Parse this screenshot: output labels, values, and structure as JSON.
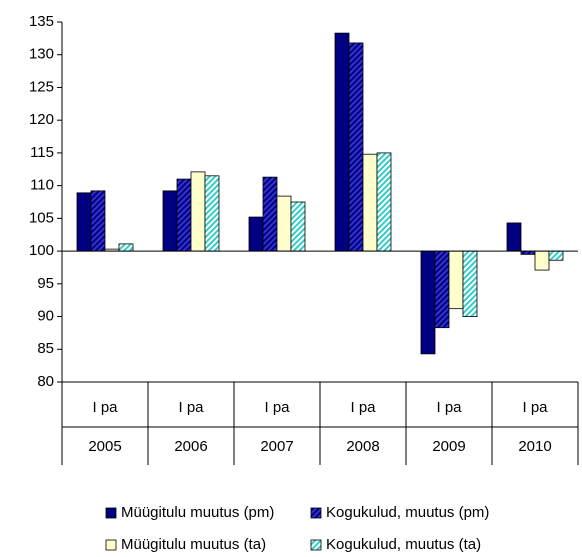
{
  "chart_data": {
    "type": "bar",
    "categories": [
      [
        "I pa",
        "2005"
      ],
      [
        "I pa",
        "2006"
      ],
      [
        "I pa",
        "2007"
      ],
      [
        "I pa",
        "2008"
      ],
      [
        "I pa",
        "2009"
      ],
      [
        "I pa",
        "2010"
      ]
    ],
    "series": [
      {
        "name": "Müügitulu muutus (pm)",
        "color": "#000080",
        "hatch": false,
        "values": [
          108.9,
          109.2,
          105.2,
          133.3,
          84.3,
          104.3
        ]
      },
      {
        "name": "Kogukulud, muutus (pm)",
        "color": "#000080",
        "hatch": true,
        "values": [
          109.2,
          111.0,
          111.3,
          131.8,
          88.3,
          99.5
        ]
      },
      {
        "name": "Müügitulu muutus (ta)",
        "color": "#ffffcc",
        "hatch": false,
        "values": [
          100.3,
          112.1,
          108.4,
          114.8,
          91.2,
          97.1
        ]
      },
      {
        "name": "Kogukulud, muutus (ta)",
        "color": "#33cccc",
        "hatch": true,
        "values": [
          101.1,
          111.5,
          107.5,
          115.0,
          90.0,
          98.6
        ]
      }
    ],
    "baseline": 100,
    "ylim": [
      80,
      135
    ],
    "yticks": [
      80,
      85,
      90,
      95,
      100,
      105,
      110,
      115,
      120,
      125,
      130,
      135
    ],
    "legend": "bottom"
  }
}
